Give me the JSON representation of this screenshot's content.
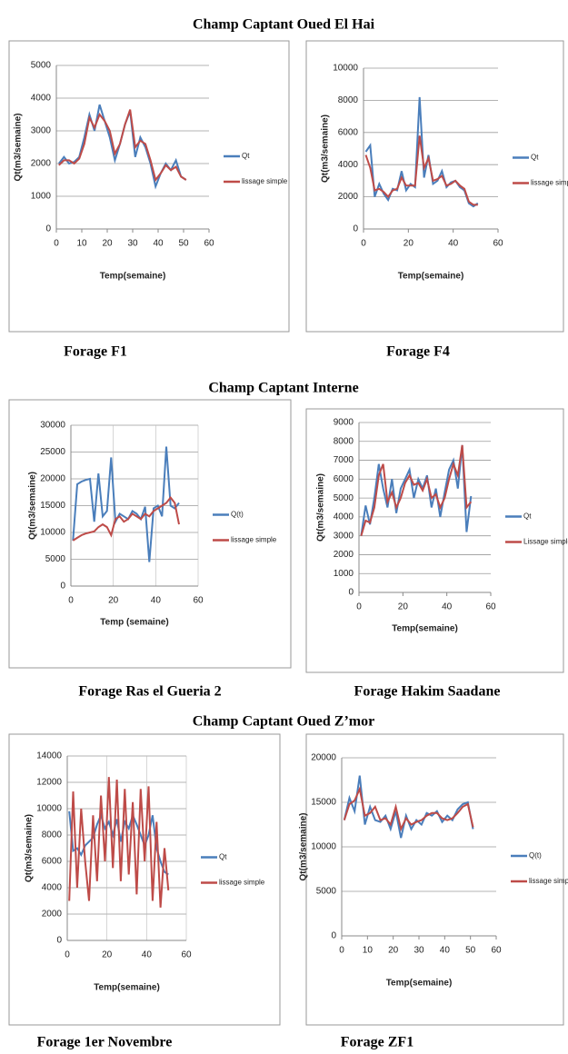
{
  "sections": [
    "Champ Captant Oued El Hai",
    "Champ Captant Interne",
    "Champ Captant Oued Z’mor"
  ],
  "chart_data": [
    {
      "type": "line",
      "caption": "Forage F1",
      "xlabel": "Temp(semaine)",
      "ylabel": "Qt(m3/semaine)",
      "grid": "y",
      "legend": "right",
      "xlim": [
        0,
        60
      ],
      "xticks": [
        0,
        10,
        20,
        30,
        40,
        50,
        60
      ],
      "ylim": [
        0,
        5000
      ],
      "yticks": [
        0,
        1000,
        2000,
        3000,
        4000,
        5000
      ],
      "x": [
        1,
        3,
        5,
        7,
        9,
        11,
        13,
        15,
        17,
        19,
        21,
        23,
        25,
        27,
        29,
        31,
        33,
        35,
        37,
        39,
        41,
        43,
        45,
        47,
        49,
        51
      ],
      "series": [
        {
          "name": "Qt",
          "color": "#4a7ebb",
          "values": [
            2000,
            2200,
            2000,
            2050,
            2200,
            2800,
            3500,
            3000,
            3800,
            3300,
            2800,
            2100,
            2600,
            3200,
            3600,
            2200,
            2800,
            2500,
            2000,
            1300,
            1700,
            2000,
            1800,
            2100,
            1600,
            1500
          ]
        },
        {
          "name": "lissage simple",
          "color": "#be4b48",
          "values": [
            1950,
            2100,
            2100,
            2000,
            2150,
            2600,
            3400,
            3100,
            3500,
            3300,
            3000,
            2300,
            2600,
            3200,
            3650,
            2500,
            2700,
            2600,
            2100,
            1500,
            1700,
            1950,
            1800,
            1900,
            1600,
            1500
          ]
        }
      ]
    },
    {
      "type": "line",
      "caption": "Forage F4",
      "xlabel": "Temp(semaine)",
      "ylabel": "Qt(m3/semaine)",
      "grid": "y",
      "legend": "right",
      "xlim": [
        0,
        60
      ],
      "xticks": [
        0,
        20,
        40,
        60
      ],
      "ylim": [
        0,
        10000
      ],
      "yticks": [
        0,
        2000,
        4000,
        6000,
        8000,
        10000
      ],
      "x": [
        1,
        3,
        5,
        7,
        9,
        11,
        13,
        15,
        17,
        19,
        21,
        23,
        25,
        27,
        29,
        31,
        33,
        35,
        37,
        39,
        41,
        43,
        45,
        47,
        49,
        51
      ],
      "series": [
        {
          "name": "Qt",
          "color": "#4a7ebb",
          "values": [
            4800,
            5200,
            2000,
            2800,
            2200,
            1800,
            2500,
            2400,
            3600,
            2400,
            2800,
            2600,
            8200,
            3200,
            4600,
            2800,
            3000,
            3600,
            2600,
            2900,
            3000,
            2600,
            2400,
            1600,
            1400,
            1600
          ]
        },
        {
          "name": "lissage simple",
          "color": "#be4b48",
          "values": [
            4600,
            3800,
            2400,
            2500,
            2300,
            2000,
            2400,
            2500,
            3200,
            2700,
            2700,
            2700,
            5800,
            3800,
            4400,
            3000,
            3100,
            3300,
            2700,
            2800,
            3000,
            2700,
            2500,
            1700,
            1500,
            1500
          ]
        }
      ]
    },
    {
      "type": "line",
      "caption": "Forage Ras el Gueria 2",
      "xlabel": "Temp (semaine)",
      "ylabel": "Qt(m3/semaine)",
      "grid": "both",
      "legend": "right",
      "xlim": [
        0,
        60
      ],
      "xticks": [
        0,
        20,
        40,
        60
      ],
      "ylim": [
        0,
        30000
      ],
      "yticks": [
        0,
        5000,
        10000,
        15000,
        20000,
        25000,
        30000
      ],
      "x": [
        1,
        3,
        5,
        7,
        9,
        11,
        13,
        15,
        17,
        19,
        21,
        23,
        25,
        27,
        29,
        31,
        33,
        35,
        37,
        39,
        41,
        43,
        45,
        47,
        49,
        51
      ],
      "series": [
        {
          "name": "Q(t)",
          "color": "#4a7ebb",
          "values": [
            8500,
            19000,
            19500,
            19800,
            20000,
            12000,
            21000,
            13000,
            14000,
            24000,
            12000,
            13500,
            13000,
            12500,
            14000,
            13500,
            12500,
            14800,
            4500,
            14500,
            15000,
            13000,
            26000,
            15000,
            14500,
            15500
          ]
        },
        {
          "name": "lissage simple",
          "color": "#be4b48",
          "values": [
            8500,
            9000,
            9500,
            9800,
            10000,
            10200,
            11000,
            11500,
            11000,
            9500,
            12500,
            13000,
            12000,
            12500,
            13500,
            13000,
            12500,
            13500,
            13000,
            14000,
            14500,
            15000,
            15500,
            16500,
            15500,
            11500
          ]
        }
      ]
    },
    {
      "type": "line",
      "caption": "Forage Hakim Saadane",
      "xlabel": "Temp(semaine)",
      "ylabel": "Qt(m3/semaine)",
      "grid": "y",
      "legend": "right",
      "xlim": [
        0,
        60
      ],
      "xticks": [
        0,
        20,
        40,
        60
      ],
      "ylim": [
        0,
        9000
      ],
      "yticks": [
        0,
        1000,
        2000,
        3000,
        4000,
        5000,
        6000,
        7000,
        8000,
        9000
      ],
      "x": [
        1,
        3,
        5,
        7,
        9,
        11,
        13,
        15,
        17,
        19,
        21,
        23,
        25,
        27,
        29,
        31,
        33,
        35,
        37,
        39,
        41,
        43,
        45,
        47,
        49,
        51
      ],
      "series": [
        {
          "name": "Qt",
          "color": "#4a7ebb",
          "values": [
            3000,
            4600,
            3600,
            5000,
            6800,
            5500,
            4500,
            6000,
            4200,
            5500,
            6000,
            6500,
            5000,
            6000,
            5500,
            6200,
            4500,
            5500,
            4000,
            5300,
            6500,
            7000,
            5500,
            7800,
            3200,
            5100
          ]
        },
        {
          "name": "Lissage simple",
          "color": "#be4b48",
          "values": [
            3000,
            3800,
            3700,
            4500,
            6200,
            6800,
            4800,
            5300,
            4500,
            5000,
            5800,
            6200,
            5700,
            5800,
            5400,
            6000,
            5000,
            5200,
            4500,
            5000,
            6000,
            6800,
            6200,
            7800,
            4500,
            4800
          ]
        }
      ]
    },
    {
      "type": "line",
      "caption": "Forage 1er Novembre",
      "xlabel": "Temp(semaine)",
      "ylabel": "Qt(m3/semaine)",
      "grid": "both",
      "legend": "right",
      "xlim": [
        0,
        60
      ],
      "xticks": [
        0,
        20,
        40,
        60
      ],
      "ylim": [
        0,
        14000
      ],
      "yticks": [
        0,
        2000,
        4000,
        6000,
        8000,
        10000,
        12000,
        14000
      ],
      "x": [
        1,
        3,
        5,
        7,
        9,
        11,
        13,
        15,
        17,
        19,
        21,
        23,
        25,
        27,
        29,
        31,
        33,
        35,
        37,
        39,
        41,
        43,
        45,
        47,
        49,
        51
      ],
      "series": [
        {
          "name": "Qt",
          "color": "#4a7ebb",
          "values": [
            9800,
            6800,
            7000,
            6500,
            7200,
            7500,
            7800,
            8800,
            9500,
            8500,
            9000,
            8000,
            9200,
            7500,
            9000,
            8500,
            9500,
            8800,
            8000,
            7200,
            8000,
            9500,
            7000,
            6000,
            5200,
            5000
          ]
        },
        {
          "name": "lissage simple",
          "color": "#be4b48",
          "values": [
            3000,
            11300,
            4000,
            10000,
            6000,
            3000,
            9500,
            4500,
            11000,
            6000,
            12400,
            5500,
            12200,
            4500,
            11500,
            5000,
            10500,
            3500,
            11500,
            6000,
            11700,
            3000,
            9000,
            2500,
            7000,
            3800
          ]
        }
      ]
    },
    {
      "type": "line",
      "caption": "Forage ZF1",
      "xlabel": "Temp(semaine)",
      "ylabel": "Qt(m3/semaine)",
      "grid": "y",
      "legend": "right",
      "xlim": [
        0,
        60
      ],
      "xticks": [
        0,
        10,
        20,
        30,
        40,
        50,
        60
      ],
      "ylim": [
        0,
        20000
      ],
      "yticks": [
        0,
        5000,
        10000,
        15000,
        20000
      ],
      "x": [
        1,
        3,
        5,
        7,
        9,
        11,
        13,
        15,
        17,
        19,
        21,
        23,
        25,
        27,
        29,
        31,
        33,
        35,
        37,
        39,
        41,
        43,
        45,
        47,
        49,
        51
      ],
      "series": [
        {
          "name": "Q(t)",
          "color": "#4a7ebb",
          "values": [
            13000,
            15500,
            14000,
            18000,
            12500,
            14500,
            13000,
            12800,
            13500,
            12000,
            14000,
            11000,
            13500,
            12000,
            13000,
            12500,
            13800,
            13500,
            14000,
            12800,
            13500,
            13000,
            14200,
            14800,
            15000,
            12000
          ]
        },
        {
          "name": "lissage simple",
          "color": "#be4b48",
          "values": [
            13000,
            14800,
            15200,
            16500,
            13500,
            13800,
            14500,
            13000,
            13200,
            12500,
            14500,
            12000,
            13200,
            12500,
            12800,
            13000,
            13500,
            13800,
            13800,
            13200,
            13000,
            13200,
            13800,
            14500,
            14800,
            12200
          ]
        }
      ]
    }
  ]
}
